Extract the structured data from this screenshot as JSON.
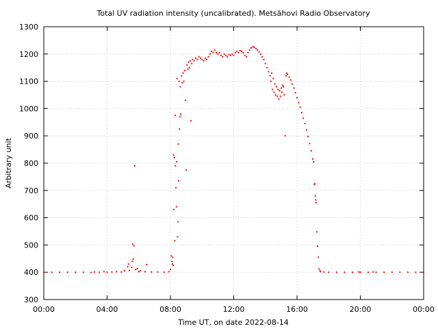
{
  "chart_data": {
    "type": "scatter",
    "title": "Total UV radiation intensity (uncalibrated). Metsähovi Radio Observatory",
    "xlabel": "Time UT, on date 2022-08-14",
    "ylabel": "Arbitrary unit",
    "xlim": [
      0,
      24
    ],
    "ylim": [
      300,
      1300
    ],
    "x_unit": "hours UT",
    "x_ticks": [
      0,
      4,
      8,
      12,
      16,
      20,
      24
    ],
    "x_tick_labels": [
      "00:00",
      "04:00",
      "08:00",
      "12:00",
      "16:00",
      "20:00",
      "00:00"
    ],
    "y_ticks": [
      300,
      400,
      500,
      600,
      700,
      800,
      900,
      1000,
      1100,
      1200,
      1300
    ],
    "y_tick_labels": [
      "300",
      "400",
      "500",
      "600",
      "700",
      "800",
      "900",
      "1000",
      "1100",
      "1200",
      "1300"
    ],
    "grid": true,
    "point_color": "#ff0000",
    "points": [
      [
        0.0,
        400
      ],
      [
        0.5,
        400
      ],
      [
        1.0,
        400
      ],
      [
        1.5,
        400
      ],
      [
        2.0,
        400
      ],
      [
        2.5,
        400
      ],
      [
        3.0,
        399
      ],
      [
        3.2,
        401
      ],
      [
        3.5,
        400
      ],
      [
        3.8,
        402
      ],
      [
        4.0,
        400
      ],
      [
        4.3,
        401
      ],
      [
        4.6,
        402
      ],
      [
        4.9,
        401
      ],
      [
        5.1,
        405
      ],
      [
        5.3,
        420
      ],
      [
        5.35,
        430
      ],
      [
        5.4,
        407
      ],
      [
        5.55,
        418
      ],
      [
        5.6,
        440
      ],
      [
        5.62,
        503
      ],
      [
        5.65,
        448
      ],
      [
        5.7,
        497
      ],
      [
        5.75,
        790
      ],
      [
        5.8,
        410
      ],
      [
        5.9,
        413
      ],
      [
        6.0,
        402
      ],
      [
        6.1,
        405
      ],
      [
        6.4,
        402
      ],
      [
        6.5,
        428
      ],
      [
        6.8,
        401
      ],
      [
        7.2,
        401
      ],
      [
        7.6,
        400
      ],
      [
        7.9,
        402
      ],
      [
        8.0,
        410
      ],
      [
        8.05,
        460
      ],
      [
        8.1,
        440
      ],
      [
        8.12,
        430
      ],
      [
        8.15,
        455
      ],
      [
        8.18,
        425
      ],
      [
        8.2,
        830
      ],
      [
        8.22,
        630
      ],
      [
        8.25,
        820
      ],
      [
        8.28,
        515
      ],
      [
        8.3,
        975
      ],
      [
        8.32,
        790
      ],
      [
        8.35,
        710
      ],
      [
        8.38,
        640
      ],
      [
        8.4,
        805
      ],
      [
        8.42,
        1110
      ],
      [
        8.45,
        530
      ],
      [
        8.48,
        585
      ],
      [
        8.5,
        870
      ],
      [
        8.52,
        735
      ],
      [
        8.55,
        1100
      ],
      [
        8.58,
        925
      ],
      [
        8.6,
        970
      ],
      [
        8.62,
        1080
      ],
      [
        8.65,
        980
      ],
      [
        8.7,
        1120
      ],
      [
        8.75,
        1095
      ],
      [
        8.8,
        1130
      ],
      [
        8.85,
        1100
      ],
      [
        8.9,
        1140
      ],
      [
        8.95,
        1030
      ],
      [
        9.0,
        775
      ],
      [
        9.05,
        1160
      ],
      [
        9.1,
        1145
      ],
      [
        9.15,
        1170
      ],
      [
        9.2,
        1150
      ],
      [
        9.25,
        1175
      ],
      [
        9.3,
        955
      ],
      [
        9.35,
        1165
      ],
      [
        9.4,
        1180
      ],
      [
        9.5,
        1175
      ],
      [
        9.6,
        1185
      ],
      [
        9.7,
        1180
      ],
      [
        9.8,
        1190
      ],
      [
        9.9,
        1185
      ],
      [
        10.0,
        1180
      ],
      [
        10.1,
        1175
      ],
      [
        10.2,
        1185
      ],
      [
        10.3,
        1180
      ],
      [
        10.4,
        1190
      ],
      [
        10.5,
        1200
      ],
      [
        10.6,
        1210
      ],
      [
        10.7,
        1205
      ],
      [
        10.8,
        1215
      ],
      [
        10.9,
        1205
      ],
      [
        11.0,
        1200
      ],
      [
        11.1,
        1205
      ],
      [
        11.2,
        1195
      ],
      [
        11.3,
        1190
      ],
      [
        11.4,
        1200
      ],
      [
        11.5,
        1195
      ],
      [
        11.6,
        1190
      ],
      [
        11.7,
        1198
      ],
      [
        11.8,
        1195
      ],
      [
        11.9,
        1200
      ],
      [
        12.0,
        1195
      ],
      [
        12.1,
        1205
      ],
      [
        12.2,
        1210
      ],
      [
        12.3,
        1205
      ],
      [
        12.4,
        1212
      ],
      [
        12.5,
        1210
      ],
      [
        12.6,
        1205
      ],
      [
        12.7,
        1195
      ],
      [
        12.8,
        1190
      ],
      [
        12.9,
        1205
      ],
      [
        13.0,
        1215
      ],
      [
        13.1,
        1222
      ],
      [
        13.2,
        1226
      ],
      [
        13.3,
        1225
      ],
      [
        13.4,
        1220
      ],
      [
        13.5,
        1215
      ],
      [
        13.6,
        1208
      ],
      [
        13.7,
        1200
      ],
      [
        13.8,
        1190
      ],
      [
        13.9,
        1180
      ],
      [
        14.0,
        1165
      ],
      [
        14.1,
        1150
      ],
      [
        14.2,
        1135
      ],
      [
        14.3,
        1120
      ],
      [
        14.35,
        1100
      ],
      [
        14.4,
        1130
      ],
      [
        14.45,
        1070
      ],
      [
        14.5,
        1110
      ],
      [
        14.55,
        1060
      ],
      [
        14.6,
        1090
      ],
      [
        14.65,
        1050
      ],
      [
        14.7,
        1080
      ],
      [
        14.75,
        1045
      ],
      [
        14.8,
        1070
      ],
      [
        14.85,
        1035
      ],
      [
        14.9,
        1065
      ],
      [
        14.95,
        1045
      ],
      [
        15.0,
        1075
      ],
      [
        15.05,
        1060
      ],
      [
        15.1,
        1085
      ],
      [
        15.15,
        1080
      ],
      [
        15.2,
        1050
      ],
      [
        15.25,
        900
      ],
      [
        15.3,
        1120
      ],
      [
        15.35,
        1130
      ],
      [
        15.4,
        1125
      ],
      [
        15.5,
        1115
      ],
      [
        15.6,
        1105
      ],
      [
        15.7,
        1090
      ],
      [
        15.8,
        1075
      ],
      [
        15.9,
        1058
      ],
      [
        16.0,
        1040
      ],
      [
        16.1,
        1022
      ],
      [
        16.2,
        1005
      ],
      [
        16.3,
        985
      ],
      [
        16.4,
        965
      ],
      [
        16.5,
        945
      ],
      [
        16.6,
        922
      ],
      [
        16.7,
        898
      ],
      [
        16.8,
        872
      ],
      [
        16.9,
        845
      ],
      [
        17.0,
        815
      ],
      [
        17.05,
        805
      ],
      [
        17.1,
        722
      ],
      [
        17.12,
        725
      ],
      [
        17.15,
        680
      ],
      [
        17.18,
        665
      ],
      [
        17.2,
        655
      ],
      [
        17.25,
        548
      ],
      [
        17.3,
        495
      ],
      [
        17.35,
        455
      ],
      [
        17.4,
        412
      ],
      [
        17.45,
        405
      ],
      [
        17.5,
        402
      ],
      [
        17.7,
        401
      ],
      [
        18.0,
        400
      ],
      [
        18.5,
        400
      ],
      [
        19.0,
        400
      ],
      [
        19.5,
        400
      ],
      [
        19.9,
        401
      ],
      [
        20.0,
        400
      ],
      [
        20.5,
        400
      ],
      [
        20.8,
        401
      ],
      [
        21.0,
        400
      ],
      [
        21.5,
        400
      ],
      [
        22.0,
        400
      ],
      [
        22.5,
        400
      ],
      [
        23.0,
        400
      ],
      [
        23.5,
        400
      ],
      [
        24.0,
        400
      ]
    ]
  }
}
